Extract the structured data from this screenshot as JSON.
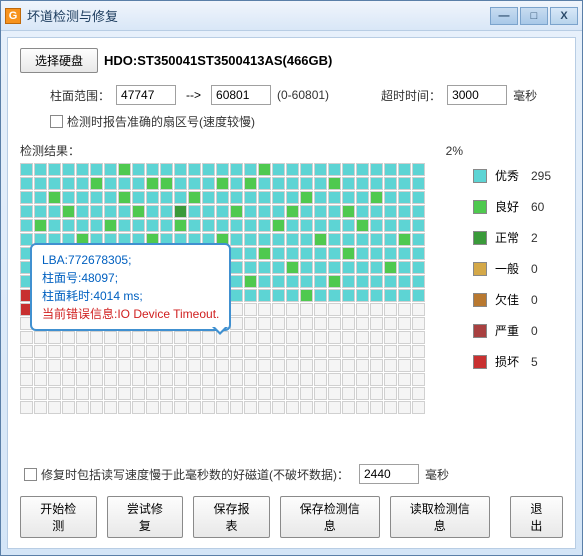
{
  "window": {
    "title": "坏道检测与修复"
  },
  "winbtns": {
    "min": "—",
    "max": "□",
    "close": "X"
  },
  "toolbar": {
    "select_disk": "选择硬盘",
    "disk_name": "HDO:ST350041ST3500413AS(466GB)"
  },
  "params": {
    "cyl_range_label": "柱面范围：",
    "from": "47747",
    "arrow": "-->",
    "to": "60801",
    "range_hint": "(0-60801)",
    "timeout_label": "超时时间：",
    "timeout": "3000",
    "timeout_unit": "毫秒"
  },
  "option": {
    "accurate_sector": "检测时报告准确的扇区号(速度较慢)"
  },
  "result": {
    "label": "检测结果：",
    "progress": "2%"
  },
  "tooltip": {
    "l1": "LBA:772678305;",
    "l2": "柱面号:48097;",
    "l3": "柱面耗时:4014 ms;",
    "l4": "当前错误信息:IO Device Timeout."
  },
  "legend": {
    "exc": {
      "label": "优秀",
      "count": "295",
      "color": "#5dd4d4"
    },
    "good": {
      "label": "良好",
      "count": "60",
      "color": "#4fc94f"
    },
    "norm": {
      "label": "正常",
      "count": "2",
      "color": "#3a9a3a"
    },
    "gen": {
      "label": "一般",
      "count": "0",
      "color": "#d4a848"
    },
    "poor": {
      "label": "欠佳",
      "count": "0",
      "color": "#b87830"
    },
    "sev": {
      "label": "严重",
      "count": "0",
      "color": "#a84040"
    },
    "bad": {
      "label": "损坏",
      "count": "5",
      "color": "#c83030"
    }
  },
  "repair": {
    "label": "修复时包括读写速度慢于此毫秒数的好磁道(不破坏数据)：",
    "value": "2440",
    "unit": "毫秒"
  },
  "buttons": {
    "start": "开始检测",
    "try_repair": "尝试修复",
    "save_report": "保存报表",
    "save_info": "保存检测信息",
    "load_info": "读取检测信息",
    "exit": "退出"
  },
  "grid": {
    "cols": 29,
    "rows": 18,
    "filled_rows": 10,
    "partial_cols": 10,
    "good_cells": [
      [
        0,
        7
      ],
      [
        0,
        17
      ],
      [
        1,
        5
      ],
      [
        1,
        9
      ],
      [
        1,
        10
      ],
      [
        1,
        14
      ],
      [
        1,
        16
      ],
      [
        1,
        22
      ],
      [
        2,
        2
      ],
      [
        2,
        7
      ],
      [
        2,
        12
      ],
      [
        2,
        20
      ],
      [
        2,
        25
      ],
      [
        3,
        3
      ],
      [
        3,
        8
      ],
      [
        3,
        15
      ],
      [
        3,
        19
      ],
      [
        3,
        23
      ],
      [
        4,
        1
      ],
      [
        4,
        6
      ],
      [
        4,
        11
      ],
      [
        4,
        18
      ],
      [
        4,
        24
      ],
      [
        5,
        4
      ],
      [
        5,
        9
      ],
      [
        5,
        14
      ],
      [
        5,
        21
      ],
      [
        5,
        27
      ],
      [
        6,
        2
      ],
      [
        6,
        10
      ],
      [
        6,
        17
      ],
      [
        6,
        23
      ],
      [
        7,
        5
      ],
      [
        7,
        12
      ],
      [
        7,
        19
      ],
      [
        7,
        26
      ],
      [
        8,
        3
      ],
      [
        8,
        8
      ],
      [
        8,
        16
      ],
      [
        8,
        22
      ],
      [
        9,
        4
      ],
      [
        9,
        11
      ],
      [
        9,
        20
      ],
      [
        10,
        2
      ],
      [
        10,
        7
      ]
    ],
    "norm_cells": [
      [
        3,
        11
      ],
      [
        6,
        13
      ]
    ],
    "bad_cells": [
      [
        9,
        0
      ],
      [
        9,
        5
      ],
      [
        9,
        6
      ],
      [
        9,
        14
      ],
      [
        10,
        0
      ]
    ]
  }
}
